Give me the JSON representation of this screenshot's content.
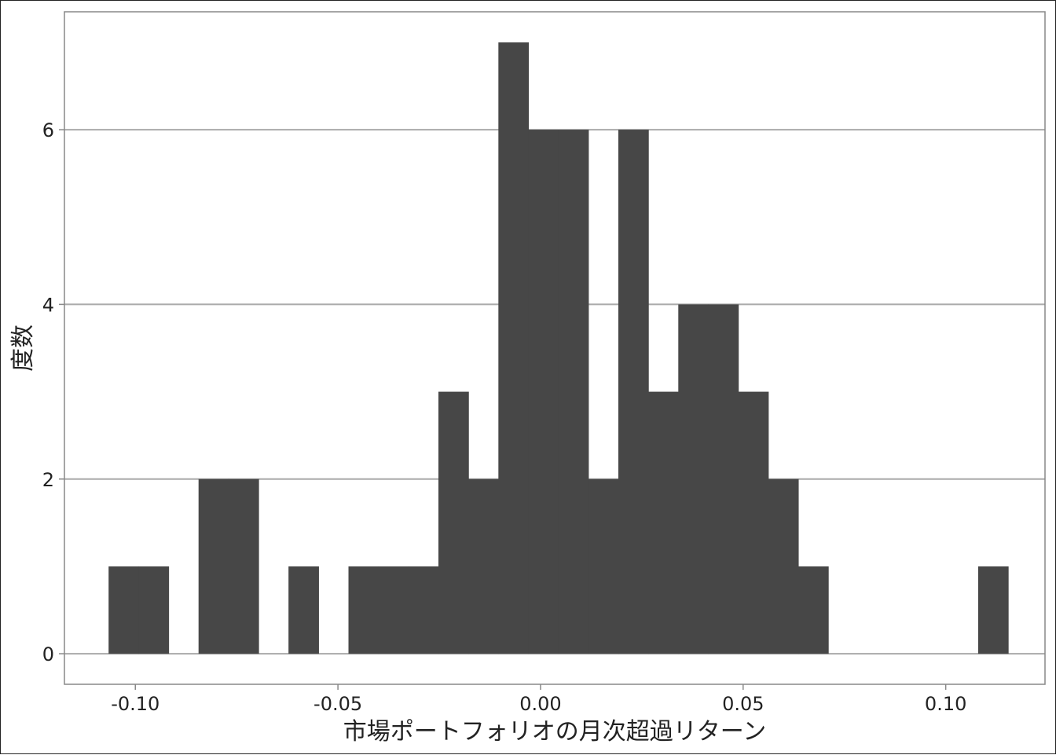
{
  "chart_data": {
    "type": "bar",
    "xlabel": "市場ポートフォリオの月次超過リターン",
    "ylabel": "度数",
    "x_ticks": [
      "-0.10",
      "-0.05",
      "0.00",
      "0.05",
      "0.10"
    ],
    "y_ticks": [
      "0",
      "2",
      "4",
      "6"
    ],
    "xlim": [
      -0.1175,
      0.1245
    ],
    "ylim": [
      -0.35,
      7.35
    ],
    "bin_width": 0.0074,
    "bin_start": -0.1066,
    "values": [
      1,
      1,
      0,
      2,
      2,
      0,
      1,
      0,
      1,
      1,
      1,
      3,
      2,
      7,
      6,
      6,
      2,
      6,
      3,
      4,
      4,
      3,
      2,
      1,
      0,
      0,
      0,
      0,
      0,
      1
    ],
    "grid": "horizontal",
    "colors": {
      "bar": "#474747",
      "grid": "#aaaaaa",
      "panel_border": "#888888"
    }
  }
}
